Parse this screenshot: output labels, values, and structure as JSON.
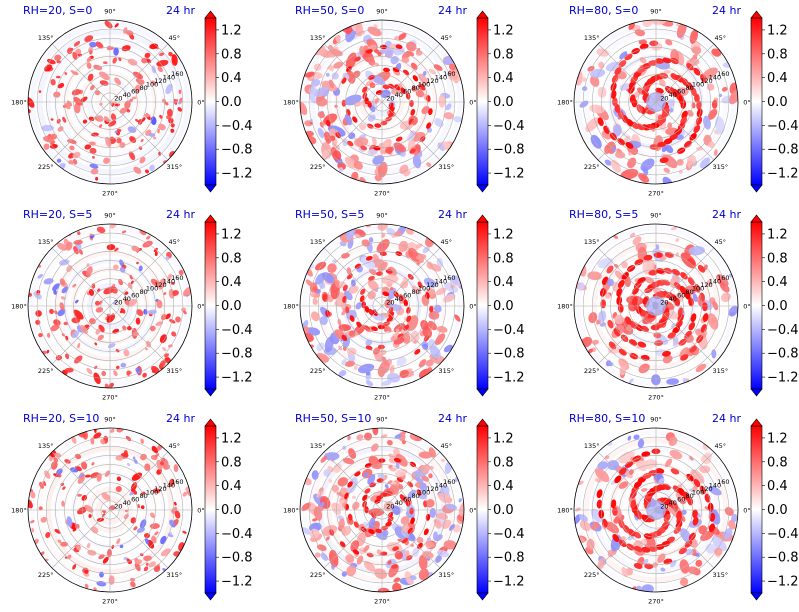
{
  "chart_data": [
    {
      "type": "heatmap",
      "projection": "polar",
      "title_left": "RH=20, S=0",
      "title_right": "24 hr"
    },
    {
      "type": "heatmap",
      "projection": "polar",
      "title_left": "RH=50, S=0",
      "title_right": "24 hr"
    },
    {
      "type": "heatmap",
      "projection": "polar",
      "title_left": "RH=80, S=0",
      "title_right": "24 hr"
    },
    {
      "type": "heatmap",
      "projection": "polar",
      "title_left": "RH=20, S=5",
      "title_right": "24 hr"
    },
    {
      "type": "heatmap",
      "projection": "polar",
      "title_left": "RH=50, S=5",
      "title_right": "24 hr"
    },
    {
      "type": "heatmap",
      "projection": "polar",
      "title_left": "RH=80, S=5",
      "title_right": "24 hr"
    },
    {
      "type": "heatmap",
      "projection": "polar",
      "title_left": "RH=20, S=10",
      "title_right": "24 hr"
    },
    {
      "type": "heatmap",
      "projection": "polar",
      "title_left": "RH=50, S=10",
      "title_right": "24 hr"
    },
    {
      "type": "heatmap",
      "projection": "polar",
      "title_left": "RH=80, S=10",
      "title_right": "24 hr"
    }
  ],
  "shared": {
    "angle_ticks": [
      "0°",
      "45°",
      "90°",
      "135°",
      "180°",
      "225°",
      "270°",
      "315°"
    ],
    "angle_values": [
      0,
      45,
      90,
      135,
      180,
      225,
      270,
      315
    ],
    "radial_ticks": [
      "20",
      "40",
      "60",
      "80",
      "100",
      "120",
      "140",
      "160"
    ],
    "radial_values": [
      20,
      40,
      60,
      80,
      100,
      120,
      140,
      160
    ],
    "rlim": [
      0,
      180
    ],
    "radial_label_angle_deg": 22.5,
    "colorbar": {
      "colormap": "bwr",
      "vmin": -1.4,
      "vmax": 1.4,
      "extend": "both",
      "ticks": [
        -1.2,
        -0.8,
        -0.4,
        0.0,
        0.4,
        0.8,
        1.2
      ],
      "tick_labels": [
        "−1.2",
        "−0.8",
        "−0.4",
        "0.0",
        "0.4",
        "0.8",
        "1.2"
      ],
      "colors": {
        "low": "#0000ff",
        "mid": "#ffffff",
        "high": "#ff0000"
      }
    },
    "title_color": "#0000cc",
    "grid_color": "#b0b0b0"
  }
}
